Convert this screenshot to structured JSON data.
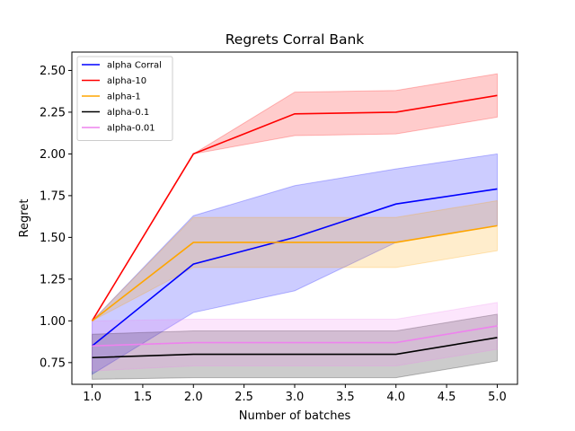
{
  "chart_data": {
    "type": "line",
    "title": "Regrets Corral Bank",
    "xlabel": "Number of batches",
    "ylabel": "Regret",
    "xlim": [
      0.8,
      5.2
    ],
    "ylim": [
      0.62,
      2.61
    ],
    "xticks": [
      1.0,
      1.5,
      2.0,
      2.5,
      3.0,
      3.5,
      4.0,
      4.5,
      5.0
    ],
    "xtick_labels": [
      "1.0",
      "1.5",
      "2.0",
      "2.5",
      "3.0",
      "3.5",
      "4.0",
      "4.5",
      "5.0"
    ],
    "yticks": [
      0.75,
      1.0,
      1.25,
      1.5,
      1.75,
      2.0,
      2.25,
      2.5
    ],
    "ytick_labels": [
      "0.75",
      "1.00",
      "1.25",
      "1.50",
      "1.75",
      "2.00",
      "2.25",
      "2.50"
    ],
    "grid": false,
    "legend_position": "top-left",
    "x": [
      1,
      2,
      3,
      4,
      5
    ],
    "series": [
      {
        "name": "alpha Corral",
        "color": "#0000ff",
        "fill_alpha": 0.2,
        "values": [
          0.85,
          1.34,
          1.5,
          1.7,
          1.79
        ],
        "lower": [
          0.68,
          1.05,
          1.18,
          1.47,
          1.57
        ],
        "upper": [
          1.0,
          1.63,
          1.81,
          1.91,
          2.0
        ]
      },
      {
        "name": "alpha-10",
        "color": "#ff0000",
        "fill_alpha": 0.2,
        "values": [
          1.0,
          2.0,
          2.24,
          2.25,
          2.35
        ],
        "lower": [
          1.0,
          2.0,
          2.11,
          2.12,
          2.22
        ],
        "upper": [
          1.0,
          2.0,
          2.37,
          2.38,
          2.48
        ]
      },
      {
        "name": "alpha-1",
        "color": "#ffa500",
        "fill_alpha": 0.2,
        "values": [
          1.0,
          1.47,
          1.47,
          1.47,
          1.57
        ],
        "lower": [
          1.0,
          1.32,
          1.32,
          1.32,
          1.42
        ],
        "upper": [
          1.0,
          1.62,
          1.62,
          1.62,
          1.72
        ]
      },
      {
        "name": "alpha-0.1",
        "color": "#000000",
        "fill_alpha": 0.2,
        "values": [
          0.78,
          0.8,
          0.8,
          0.8,
          0.9
        ],
        "lower": [
          0.65,
          0.66,
          0.66,
          0.66,
          0.76
        ],
        "upper": [
          0.92,
          0.94,
          0.94,
          0.94,
          1.04
        ]
      },
      {
        "name": "alpha-0.01",
        "color": "#ee82ee",
        "fill_alpha": 0.2,
        "values": [
          0.85,
          0.87,
          0.87,
          0.87,
          0.97
        ],
        "lower": [
          0.7,
          0.73,
          0.73,
          0.73,
          0.83
        ],
        "upper": [
          1.0,
          1.01,
          1.01,
          1.01,
          1.11
        ]
      }
    ]
  }
}
